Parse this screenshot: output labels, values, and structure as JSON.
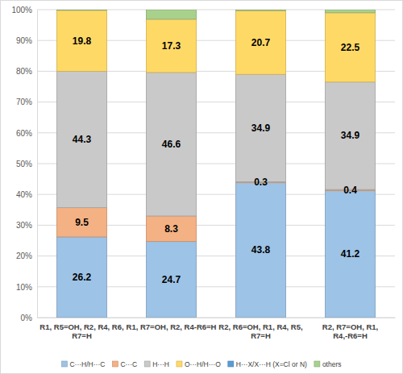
{
  "chart_data": {
    "type": "bar",
    "stacked": true,
    "data_labels": true,
    "grid": true,
    "legend": "bottom",
    "categories": [
      "R1, R5=OH, R2, R4, R6, R7=H",
      "R1, R7=OH, R2, R4-R6=H",
      "R2, R6=OH, R1, R4, R5, R7=H",
      "R2, R7=OH, R1, R4,-R6=H"
    ],
    "series": [
      {
        "name": "C···H/H···C",
        "color": "#9dc3e6",
        "values": [
          26.2,
          24.7,
          43.8,
          41.2
        ]
      },
      {
        "name": "C···C",
        "color": "#f4b183",
        "values": [
          9.5,
          8.3,
          0.3,
          0.4
        ]
      },
      {
        "name": "H···H",
        "color": "#c9c9c9",
        "values": [
          44.3,
          46.6,
          34.9,
          34.9
        ]
      },
      {
        "name": "O···H/H···O",
        "color": "#ffd966",
        "values": [
          19.8,
          17.3,
          20.7,
          22.5
        ]
      },
      {
        "name": "H···X/X···H (X=Cl or N)",
        "color": "#5b9bd5",
        "data_labels": false,
        "values": [
          0,
          0,
          0,
          0
        ]
      },
      {
        "name": "others",
        "color": "#a9d18e",
        "data_labels": false,
        "values": [
          0.2,
          3.1,
          0.3,
          1.0
        ]
      }
    ],
    "ylim": [
      0,
      100
    ],
    "yticks": [
      {
        "value": 0,
        "label": "0%"
      },
      {
        "value": 10,
        "label": "10%"
      },
      {
        "value": 20,
        "label": "20%"
      },
      {
        "value": 30,
        "label": "30%"
      },
      {
        "value": 40,
        "label": "40%"
      },
      {
        "value": 50,
        "label": "50%"
      },
      {
        "value": 60,
        "label": "60%"
      },
      {
        "value": 70,
        "label": "70%"
      },
      {
        "value": 80,
        "label": "80%"
      },
      {
        "value": 90,
        "label": "90%"
      },
      {
        "value": 100,
        "label": "100%"
      }
    ]
  }
}
